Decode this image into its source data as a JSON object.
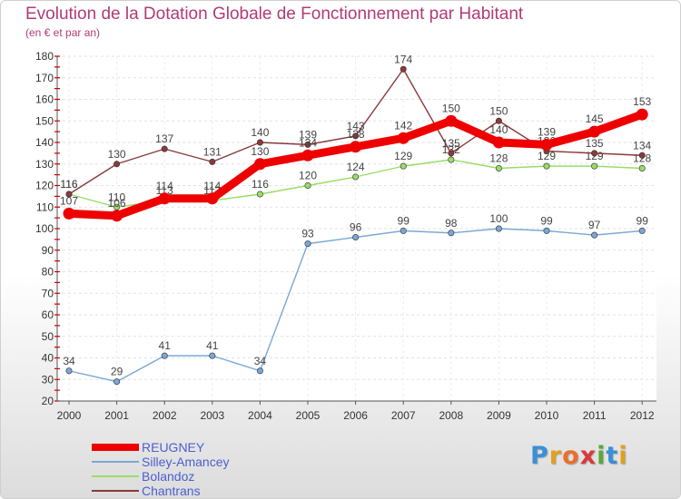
{
  "header": {
    "title": "Evolution de la Dotation Globale de Fonctionnement par Habitant",
    "subtitle": "(en € et par an)"
  },
  "logo": {
    "text": "Proxiti",
    "letters": [
      "P",
      "r",
      "o",
      "x",
      "i",
      "t",
      "i"
    ],
    "colors": [
      "#3a8fd6",
      "#e0a020",
      "#e8702a",
      "#d83a3a",
      "#5aa83a",
      "#3a8fd6",
      "#e0a020"
    ]
  },
  "chart_data": {
    "type": "line",
    "title": "Evolution de la Dotation Globale de Fonctionnement par Habitant",
    "subtitle": "(en € et par an)",
    "xlabel": "",
    "ylabel": "",
    "x": [
      "2000",
      "2001",
      "2002",
      "2003",
      "2004",
      "2005",
      "2006",
      "2007",
      "2008",
      "2009",
      "2010",
      "2011",
      "2012"
    ],
    "ylim": [
      20,
      180
    ],
    "yticks": [
      20,
      30,
      40,
      50,
      60,
      70,
      80,
      90,
      100,
      110,
      120,
      130,
      140,
      150,
      160,
      170,
      180
    ],
    "grid": true,
    "legend_position": "bottom-left",
    "series": [
      {
        "name": "REUGNEY",
        "color": "#ee0000",
        "values": [
          107,
          106,
          114,
          114,
          130,
          134,
          138,
          142,
          150,
          140,
          139,
          145,
          153
        ],
        "labels": [
          "107",
          "106",
          "114",
          "114",
          "130",
          "134",
          "138",
          "142",
          "150",
          "140",
          "139",
          "145",
          "153"
        ]
      },
      {
        "name": "Silley-Amancey",
        "color": "#7aa7d6",
        "values": [
          34,
          29,
          41,
          41,
          34,
          93,
          96,
          99,
          98,
          100,
          99,
          97,
          99
        ],
        "labels": [
          "34",
          "29",
          "41",
          "41",
          "34",
          "93",
          "96",
          "99",
          "98",
          "100",
          "99",
          "97",
          "99"
        ]
      },
      {
        "name": "Bolandoz",
        "color": "#99dd66",
        "values": [
          116,
          110,
          113,
          113,
          116,
          120,
          124,
          129,
          132,
          128,
          129,
          129,
          128
        ],
        "labels": [
          "116",
          "110",
          "113",
          "113",
          "116",
          "120",
          "124",
          "129",
          "132",
          "128",
          "129",
          "129",
          "128"
        ]
      },
      {
        "name": "Chantrans",
        "color": "#8a3a3a",
        "values": [
          116,
          130,
          137,
          131,
          140,
          139,
          143,
          174,
          135,
          150,
          136,
          135,
          134
        ],
        "labels": [
          "116",
          "130",
          "137",
          "131",
          "140",
          "139",
          "143",
          "174",
          "135",
          "150",
          "136",
          "135",
          "134"
        ]
      }
    ]
  }
}
